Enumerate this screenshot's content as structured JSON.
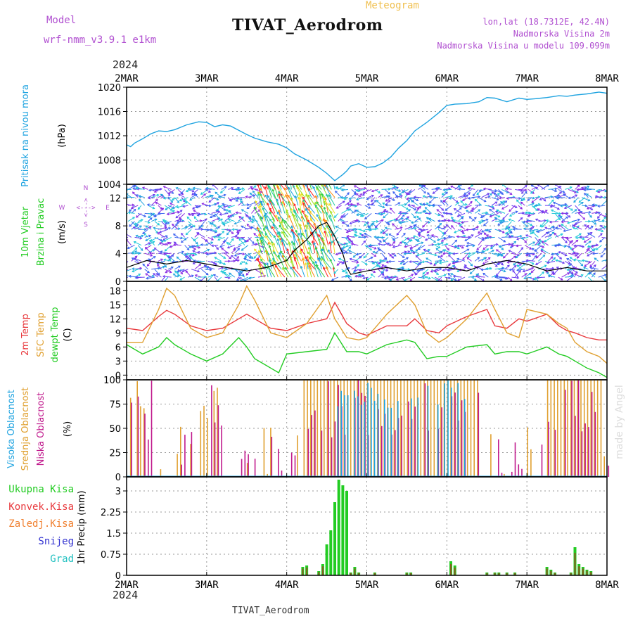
{
  "header": {
    "model_label": "Model",
    "model_name": "wrf-nmm_v3.9.1  e1km",
    "kind": "Meteogram",
    "station": "TIVAT_Aerodrom",
    "lonlat": "lon,lat (18.7312E, 42.4N)",
    "elevation": "Nadmorska Visina 2m",
    "model_elevation": "Nadmorska Visina u modelu 109.099m",
    "year": "2024",
    "footer_station": "TIVAT_Aerodrom",
    "watermark": "made by Angel"
  },
  "colors": {
    "pressure": "#1ea3e0",
    "temp2m": "#e8383c",
    "sfc": "#e0a030",
    "dew": "#22cc22",
    "high_cloud": "#1ea3e0",
    "mid_cloud": "#e0a030",
    "low_cloud": "#c0188c",
    "total_rain": "#22cc22",
    "conv_rain": "#e8383c",
    "frz_rain": "#f08030",
    "snow": "#3030d0",
    "hail": "#20c0c0"
  },
  "chart_data": [
    {
      "type": "line",
      "panel": "pressure",
      "ylabel_1": "Pritisak na nivou mora",
      "ylabel_2": "(hPa)",
      "x_ticks": [
        "2MAR",
        "3MAR",
        "4MAR",
        "5MAR",
        "6MAR",
        "7MAR",
        "8MAR"
      ],
      "ylim": [
        1004,
        1020
      ],
      "yticks": [
        "1004",
        "1008",
        "1012",
        "1016",
        "1020"
      ],
      "grid": true,
      "series": [
        {
          "x": [
            0,
            0.05,
            0.1,
            0.2,
            0.3,
            0.4,
            0.5,
            0.6,
            0.75,
            0.9,
            1.0,
            1.1,
            1.2,
            1.3,
            1.4,
            1.5,
            1.6,
            1.75,
            1.9,
            2.0,
            2.1,
            2.25,
            2.4,
            2.5,
            2.6,
            2.7,
            2.75,
            2.8,
            2.9,
            3.0,
            3.1,
            3.2,
            3.3,
            3.4,
            3.5,
            3.6,
            3.75,
            3.9,
            4.0,
            4.1,
            4.25,
            4.4,
            4.5,
            4.6,
            4.75,
            4.9,
            5.0,
            5.1,
            5.25,
            5.4,
            5.5,
            5.6,
            5.75,
            5.9,
            6.0
          ],
          "y": [
            1010.5,
            1010.2,
            1010.8,
            1011.5,
            1012.3,
            1012.8,
            1012.7,
            1013.0,
            1013.8,
            1014.3,
            1014.2,
            1013.5,
            1013.8,
            1013.6,
            1012.9,
            1012.2,
            1011.6,
            1011.0,
            1010.6,
            1010.0,
            1009.0,
            1008.0,
            1006.8,
            1005.8,
            1004.6,
            1005.6,
            1006.2,
            1007.0,
            1007.4,
            1006.8,
            1006.9,
            1007.5,
            1008.5,
            1010.0,
            1011.2,
            1012.8,
            1014.2,
            1015.8,
            1017.0,
            1017.2,
            1017.3,
            1017.6,
            1018.3,
            1018.2,
            1017.6,
            1018.2,
            1018.0,
            1018.1,
            1018.3,
            1018.6,
            1018.5,
            1018.7,
            1018.9,
            1019.2,
            1019.0
          ]
        }
      ]
    },
    {
      "type": "vector",
      "panel": "wind",
      "ylabel_1": "10m Vjetar",
      "ylabel_2": "Brzina i Pravac",
      "ylabel_3": "(m/s)",
      "compass": [
        "N",
        "S",
        "W",
        "E"
      ],
      "compass_arrows": [
        "<--->",
        "<--->"
      ],
      "ylim": [
        0,
        14
      ],
      "yticks": [
        "0",
        "4",
        "8",
        "12"
      ],
      "grid": true,
      "speed_series": [
        {
          "name": "speed",
          "x": [
            0,
            0.25,
            0.5,
            0.75,
            1.0,
            1.25,
            1.5,
            1.75,
            2.0,
            2.1,
            2.25,
            2.4,
            2.5,
            2.6,
            2.7,
            2.75,
            2.8,
            3.0,
            3.25,
            3.5,
            3.75,
            4.0,
            4.25,
            4.5,
            4.75,
            5.0,
            5.25,
            5.5,
            5.75,
            6.0
          ],
          "y": [
            2,
            3,
            2.5,
            3,
            2.5,
            2,
            1.5,
            2,
            3,
            4.5,
            6,
            8,
            8.5,
            6.5,
            4,
            2,
            1,
            1.5,
            2,
            1.5,
            2,
            2,
            1.5,
            2.5,
            3,
            2.5,
            1.5,
            2,
            1.5,
            1.5
          ]
        }
      ]
    },
    {
      "type": "line",
      "panel": "temperature",
      "ylabel_1": "2m Temp",
      "ylabel_2": "SFC Temp",
      "ylabel_3": "dewpt Temp",
      "ylabel_4": "(C)",
      "ylim": [
        -1,
        20
      ],
      "yticks": [
        "0",
        "3",
        "6",
        "9",
        "12",
        "15",
        "18"
      ],
      "grid": true,
      "series": [
        {
          "name": "2m Temp",
          "x": [
            0,
            0.2,
            0.4,
            0.5,
            0.6,
            0.8,
            1.0,
            1.2,
            1.4,
            1.5,
            1.6,
            1.8,
            2.0,
            2.25,
            2.5,
            2.6,
            2.75,
            2.9,
            3.0,
            3.25,
            3.5,
            3.6,
            3.75,
            3.9,
            4.0,
            4.25,
            4.5,
            4.6,
            4.75,
            4.9,
            5.0,
            5.25,
            5.4,
            5.5,
            5.6,
            5.75,
            5.9,
            6.0
          ],
          "y": [
            10,
            9.5,
            12.5,
            13.8,
            13,
            10.5,
            9.5,
            10,
            12,
            13,
            12,
            10,
            9.5,
            11,
            12,
            15.5,
            11,
            9,
            8.5,
            10.5,
            10.5,
            12,
            9.5,
            9,
            10.5,
            12.5,
            14,
            10.5,
            10,
            12,
            11.5,
            13,
            10.5,
            9.5,
            9,
            8,
            7.5,
            7.5
          ]
        },
        {
          "name": "SFC Temp",
          "x": [
            0,
            0.2,
            0.4,
            0.5,
            0.6,
            0.8,
            1.0,
            1.2,
            1.4,
            1.5,
            1.6,
            1.8,
            2.0,
            2.25,
            2.5,
            2.6,
            2.75,
            2.9,
            3.0,
            3.25,
            3.5,
            3.6,
            3.75,
            3.9,
            4.0,
            4.25,
            4.5,
            4.6,
            4.75,
            4.9,
            5.0,
            5.25,
            5.4,
            5.5,
            5.6,
            5.75,
            5.9,
            6.0
          ],
          "y": [
            7,
            7,
            14,
            18.5,
            17,
            10,
            8,
            9,
            15,
            19,
            16,
            9,
            8,
            11,
            17,
            12,
            8,
            7.5,
            8,
            13,
            17,
            15,
            9,
            7,
            8,
            12,
            17.5,
            14,
            9,
            8,
            14,
            13,
            11,
            10,
            7,
            5,
            4,
            2.5
          ]
        },
        {
          "name": "dewpt Temp",
          "x": [
            0,
            0.2,
            0.4,
            0.5,
            0.6,
            0.8,
            1.0,
            1.2,
            1.4,
            1.5,
            1.6,
            1.8,
            1.9,
            2.0,
            2.25,
            2.5,
            2.6,
            2.75,
            2.9,
            3.0,
            3.25,
            3.5,
            3.6,
            3.75,
            3.9,
            4.0,
            4.25,
            4.5,
            4.6,
            4.75,
            4.9,
            5.0,
            5.25,
            5.4,
            5.5,
            5.6,
            5.75,
            5.9,
            6.0
          ],
          "y": [
            6.5,
            4.5,
            6,
            8,
            6.5,
            4.5,
            3,
            4.5,
            8,
            6,
            3.5,
            1.5,
            0.5,
            4.5,
            5,
            5.5,
            9,
            5,
            5,
            4.5,
            6.5,
            7.5,
            7,
            3.5,
            4,
            4,
            6,
            6.5,
            4.5,
            5,
            5,
            4.5,
            6,
            4.5,
            4,
            3,
            1.5,
            0.5,
            -0.5
          ]
        }
      ]
    },
    {
      "type": "bar",
      "panel": "cloud",
      "ylabel_1": "Visoka Oblacnost",
      "ylabel_2": "Srednja Oblacnost",
      "ylabel_3": "Niska Oblacnost",
      "ylabel_4": "(%)",
      "ylim": [
        0,
        100
      ],
      "yticks": [
        "0",
        "25",
        "50",
        "75",
        "100"
      ],
      "grid": true
    },
    {
      "type": "bar",
      "panel": "precip",
      "ylabel_1": "1hr Precip (mm)",
      "legend": [
        "Ukupna Kisa",
        "Konvek.Kisa",
        "Zaledj.Kisa",
        "Snijeg",
        "Grad"
      ],
      "ylim": [
        0,
        3.5
      ],
      "yticks": [
        "0",
        "0.75",
        "1.5",
        "2.25",
        "3"
      ],
      "grid": true,
      "x": [
        2.2,
        2.25,
        2.4,
        2.45,
        2.5,
        2.55,
        2.6,
        2.65,
        2.7,
        2.75,
        2.8,
        2.85,
        2.9,
        3.1,
        3.5,
        3.55,
        4.05,
        4.1,
        4.5,
        4.6,
        4.65,
        4.75,
        4.85,
        5.25,
        5.3,
        5.35,
        5.55,
        5.6,
        5.65,
        5.7,
        5.75,
        5.8
      ],
      "values": [
        0.3,
        0.35,
        0.15,
        0.4,
        1.1,
        1.6,
        2.6,
        3.4,
        3.2,
        3.0,
        0.1,
        0.3,
        0.1,
        0.1,
        0.1,
        0.1,
        0.5,
        0.35,
        0.1,
        0.1,
        0.1,
        0.1,
        0.1,
        0.3,
        0.2,
        0.1,
        0.1,
        1.0,
        0.4,
        0.3,
        0.2,
        0.15
      ]
    }
  ]
}
